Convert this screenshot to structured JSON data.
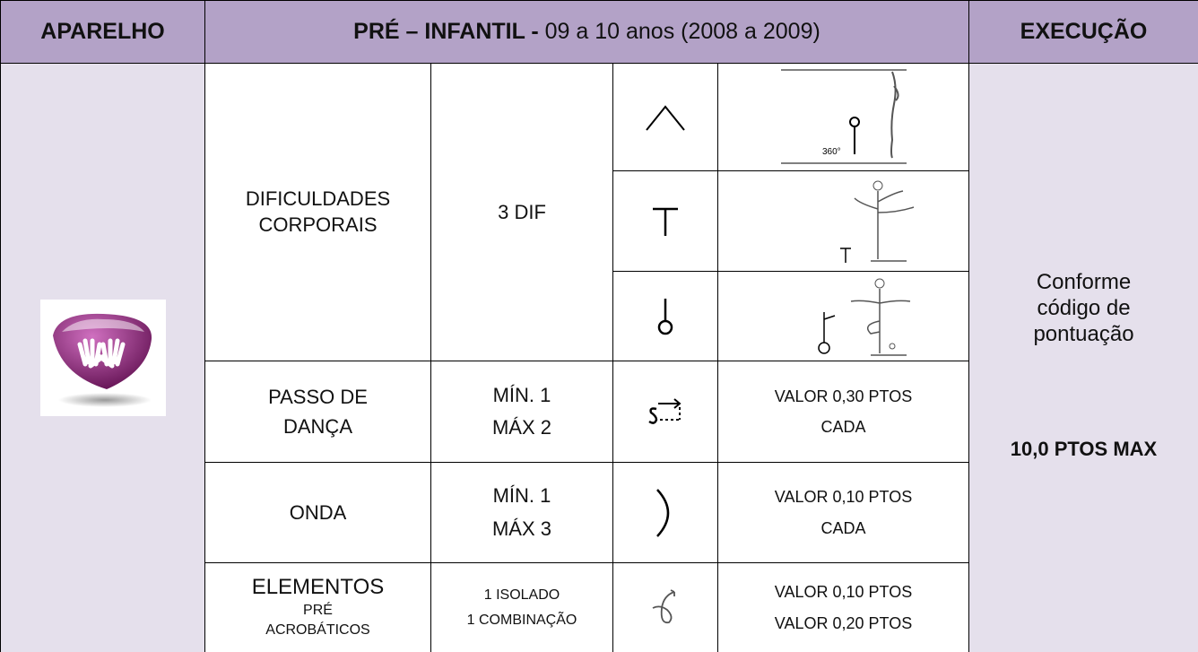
{
  "header": {
    "apparatus": "APARELHO",
    "title_bold": "PRÉ – INFANTIL - ",
    "title_rest": "09 a 10 anos (2008 a 2009)",
    "execution": "EXECUÇÃO"
  },
  "difficulties": {
    "element": [
      "DIFICULDADES",
      "CORPORAIS"
    ],
    "quantity": "3 DIF",
    "figure_label": "360°"
  },
  "rows": [
    {
      "element": [
        "PASSO DE",
        "DANÇA"
      ],
      "quantity": [
        "MÍN. 1",
        "MÁX 2"
      ],
      "value": [
        "VALOR 0,30 PTOS",
        "CADA"
      ]
    },
    {
      "element": [
        "ONDA"
      ],
      "quantity": [
        "MÍN. 1",
        "MÁX 3"
      ],
      "value": [
        "VALOR 0,10 PTOS",
        "CADA"
      ]
    },
    {
      "element": [
        "ELEMENTOS",
        "PRÉ",
        "ACROBÁTICOS"
      ],
      "quantity": [
        "1 ISOLADO",
        "1 COMBINAÇÃO"
      ],
      "value": [
        "VALOR 0,10 PTOS",
        "VALOR 0,20 PTOS"
      ]
    }
  ],
  "execution": {
    "text": [
      "Conforme",
      "código de",
      "pontuação"
    ],
    "max": "10,0 PTOS MAX"
  }
}
